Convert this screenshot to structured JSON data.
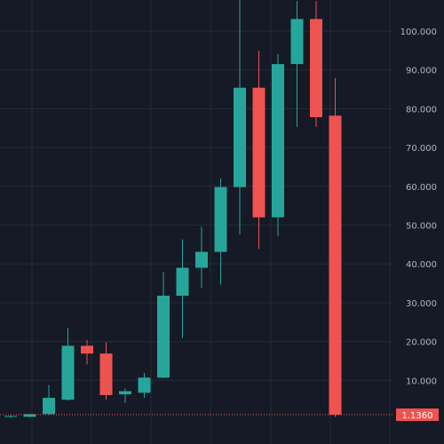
{
  "colors": {
    "background": "#151a26",
    "grid": "#232a39",
    "up": "#26a69a",
    "down": "#ef5350",
    "axis_text": "#b2b5be",
    "last_line": "#ef5350",
    "last_label_bg": "#ef5350",
    "last_label_text": "#ffffff"
  },
  "chart_data": {
    "type": "candlestick",
    "ylim": [
      0,
      108
    ],
    "y_tick_labels": [
      "10.000",
      "20.000",
      "30.000",
      "40.000",
      "50.000",
      "60.000",
      "70.000",
      "80.000",
      "90.000",
      "100.000"
    ],
    "y_ticks": [
      10,
      20,
      30,
      40,
      50,
      60,
      70,
      80,
      90,
      100
    ],
    "last_price_label": "1.1360",
    "last_price": 1.136,
    "grid": true,
    "candles": [
      {
        "o": 0.7,
        "h": 1.0,
        "l": 0.4,
        "c": 0.8
      },
      {
        "o": 0.6,
        "h": 1.3,
        "l": 0.5,
        "c": 1.3
      },
      {
        "o": 1.3,
        "h": 8.8,
        "l": 1.1,
        "c": 5.5
      },
      {
        "o": 5.0,
        "h": 23.5,
        "l": 4.8,
        "c": 18.9
      },
      {
        "o": 18.9,
        "h": 20.4,
        "l": 14.1,
        "c": 16.9
      },
      {
        "o": 16.9,
        "h": 19.8,
        "l": 5.0,
        "c": 6.2
      },
      {
        "o": 6.4,
        "h": 7.9,
        "l": 4.2,
        "c": 7.2
      },
      {
        "o": 6.8,
        "h": 11.9,
        "l": 5.5,
        "c": 10.7
      },
      {
        "o": 10.7,
        "h": 37.9,
        "l": 10.5,
        "c": 31.8
      },
      {
        "o": 31.8,
        "h": 46.3,
        "l": 20.9,
        "c": 39.0
      },
      {
        "o": 39.0,
        "h": 49.6,
        "l": 33.8,
        "c": 43.1
      },
      {
        "o": 43.1,
        "h": 62.0,
        "l": 34.7,
        "c": 59.8
      },
      {
        "o": 59.8,
        "h": 111.0,
        "l": 47.6,
        "c": 85.4
      },
      {
        "o": 85.4,
        "h": 94.9,
        "l": 43.9,
        "c": 52.0
      },
      {
        "o": 52.0,
        "h": 94.1,
        "l": 47.1,
        "c": 91.5
      },
      {
        "o": 91.5,
        "h": 107.7,
        "l": 75.3,
        "c": 103.1
      },
      {
        "o": 103.1,
        "h": 107.7,
        "l": 75.3,
        "c": 77.8
      },
      {
        "o": 78.2,
        "h": 87.9,
        "l": 0.6,
        "c": 1.136
      }
    ]
  }
}
